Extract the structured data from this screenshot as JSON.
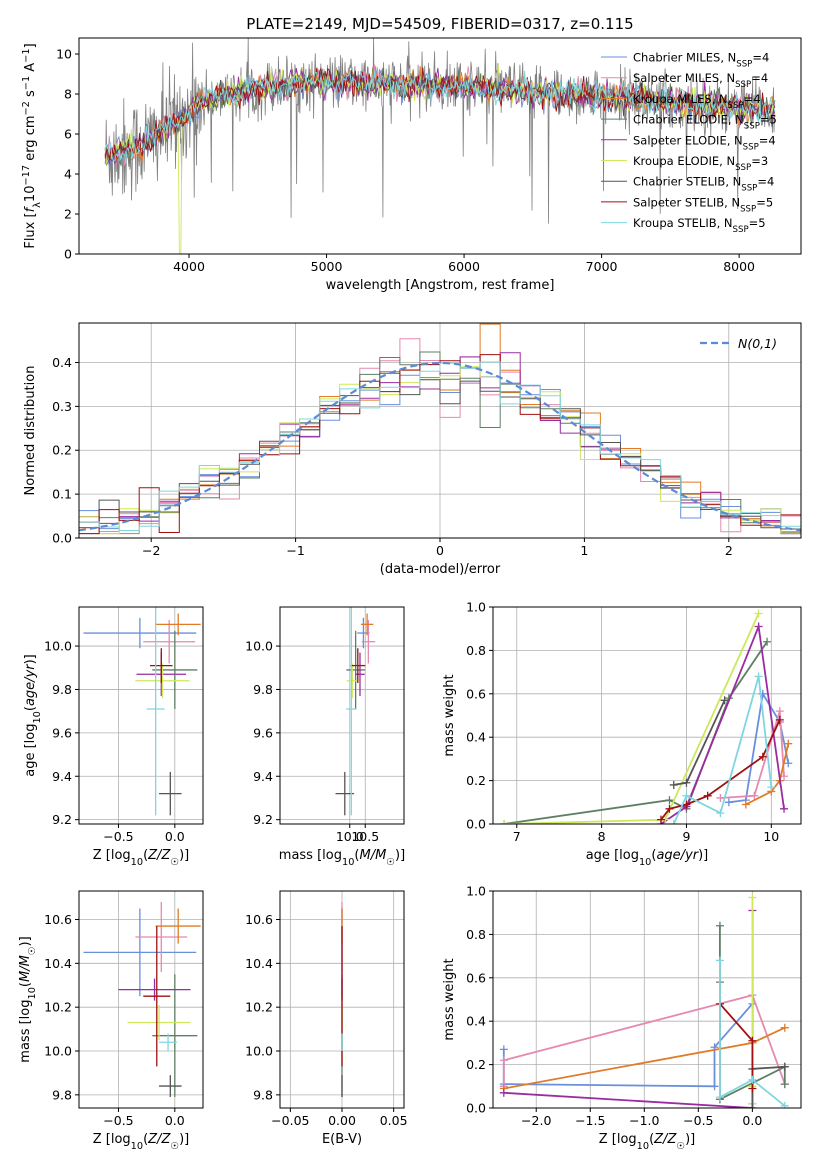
{
  "figure_title": "PLATE=2149, MJD=54509, FIBERID=0317, z=0.115",
  "models": [
    {
      "name": "Chabrier MILES",
      "n": "4",
      "color": "#6a8fdc"
    },
    {
      "name": "Salpeter MILES",
      "n": "4",
      "color": "#e589b0"
    },
    {
      "name": "Kroupa MILES",
      "n": "4",
      "color": "#e07b27"
    },
    {
      "name": "Chabrier ELODIE",
      "n": "5",
      "color": "#5f7f64"
    },
    {
      "name": "Salpeter ELODIE",
      "n": "4",
      "color": "#9a2ca0"
    },
    {
      "name": "Kroupa ELODIE",
      "n": "3",
      "color": "#cde85a"
    },
    {
      "name": "Chabrier STELIB",
      "n": "4",
      "color": "#555555"
    },
    {
      "name": "Salpeter STELIB",
      "n": "5",
      "color": "#a01010"
    },
    {
      "name": "Kroupa STELIB",
      "n": "5",
      "color": "#7fd6e0"
    }
  ],
  "chart_data": [
    {
      "id": "spectrum",
      "type": "line",
      "xlabel": "wavelength [Angstrom, rest frame]",
      "ylabel": "Flux [f_λ 10^-17 erg cm^-2 s^-1 A^-1]",
      "xlim": [
        3200,
        8450
      ],
      "ylim": [
        0,
        10.8
      ],
      "xticks": [
        4000,
        5000,
        6000,
        7000,
        8000
      ],
      "yticks": [
        0,
        2,
        4,
        6,
        8,
        10
      ],
      "grid": false,
      "legend": "top-right",
      "data_color": "#808080",
      "continuum": {
        "x": [
          3400,
          3600,
          3700,
          3800,
          3900,
          4000,
          4100,
          4300,
          4500,
          4800,
          5000,
          5500,
          6000,
          6500,
          7000,
          7200,
          7500,
          8000,
          8250
        ],
        "y": [
          4.9,
          5.3,
          5.6,
          6.1,
          6.5,
          7.1,
          7.7,
          8.0,
          8.3,
          8.6,
          8.6,
          8.5,
          8.4,
          8.1,
          7.9,
          7.8,
          7.6,
          7.3,
          7.2
        ]
      },
      "range": [
        3390,
        8260
      ]
    },
    {
      "id": "residuals",
      "type": "histogram",
      "xlabel": "(data-model)/error",
      "ylabel": "Normed distribution",
      "xlim": [
        -2.5,
        2.5
      ],
      "ylim": [
        0,
        0.49
      ],
      "xticks": [
        -2,
        -1,
        0,
        1,
        2
      ],
      "yticks": [
        0.0,
        0.1,
        0.2,
        0.3,
        0.4
      ],
      "grid": true,
      "legend": "top-right",
      "reference_label": "N(0,1)",
      "reference_color": "#5b8bd6",
      "bins": 36
    },
    {
      "id": "age-vs-z",
      "type": "scatter",
      "xlabel": "Z [log10(Z/Z☉)]",
      "ylabel": "age  [log10(age/yr)]",
      "xlim": [
        -0.85,
        0.25
      ],
      "ylim": [
        9.18,
        10.18
      ],
      "xticks": [
        -0.5,
        0.0
      ],
      "yticks": [
        9.2,
        9.4,
        9.6,
        9.8,
        10.0
      ],
      "grid": true,
      "points": [
        {
          "x": -0.31,
          "y": 10.06,
          "xerr": 0.5,
          "yerr": 0.07,
          "model": 0
        },
        {
          "x": -0.05,
          "y": 10.02,
          "xerr": 0.23,
          "yerr": 0.1,
          "model": 1
        },
        {
          "x": 0.03,
          "y": 10.1,
          "xerr": 0.2,
          "yerr": 0.05,
          "model": 2
        },
        {
          "x": 0.0,
          "y": 9.89,
          "xerr": 0.2,
          "yerr": 0.18,
          "model": 3
        },
        {
          "x": -0.12,
          "y": 9.87,
          "xerr": 0.22,
          "yerr": 0.1,
          "model": 4
        },
        {
          "x": -0.11,
          "y": 9.84,
          "xerr": 0.24,
          "yerr": 0.08,
          "model": 5
        },
        {
          "x": -0.04,
          "y": 9.32,
          "xerr": 0.1,
          "yerr": 0.1,
          "model": 6
        },
        {
          "x": -0.12,
          "y": 9.91,
          "xerr": 0.1,
          "yerr": 0.08,
          "model": 7
        },
        {
          "x": -0.17,
          "y": 9.71,
          "xerr": 0.08,
          "yerr": 0.49,
          "model": 8
        }
      ]
    },
    {
      "id": "age-vs-mass",
      "type": "scatter",
      "xlabel": "mass [log10(M/M☉)]",
      "ylabel": "",
      "xlim": [
        7.75,
        11.75
      ],
      "ylim": [
        9.18,
        10.18
      ],
      "xticks": [
        10.0,
        10.5
      ],
      "yticks": [
        9.2,
        9.4,
        9.6,
        9.8,
        10.0
      ],
      "grid": true,
      "points": [
        {
          "x": 10.44,
          "y": 10.06,
          "xerr": 0.2,
          "yerr": 0.07,
          "model": 0
        },
        {
          "x": 10.6,
          "y": 10.02,
          "xerr": 0.22,
          "yerr": 0.1,
          "model": 1
        },
        {
          "x": 10.56,
          "y": 10.1,
          "xerr": 0.2,
          "yerr": 0.05,
          "model": 2
        },
        {
          "x": 10.19,
          "y": 9.89,
          "xerr": 0.3,
          "yerr": 0.18,
          "model": 3
        },
        {
          "x": 10.33,
          "y": 9.87,
          "xerr": 0.15,
          "yerr": 0.1,
          "model": 4
        },
        {
          "x": 10.08,
          "y": 9.84,
          "xerr": 0.18,
          "yerr": 0.08,
          "model": 5
        },
        {
          "x": 9.84,
          "y": 9.32,
          "xerr": 0.3,
          "yerr": 0.1,
          "model": 6
        },
        {
          "x": 10.26,
          "y": 9.91,
          "xerr": 0.24,
          "yerr": 0.08,
          "model": 7
        },
        {
          "x": 10.05,
          "y": 9.71,
          "xerr": 0.16,
          "yerr": 0.49,
          "model": 8
        }
      ]
    },
    {
      "id": "weight-vs-age",
      "type": "line",
      "xlabel": "age  [log10(age/yr)]",
      "ylabel": "mass weight",
      "xlim": [
        6.72,
        10.35
      ],
      "ylim": [
        0,
        1.0
      ],
      "xticks": [
        7,
        8,
        9,
        10
      ],
      "yticks": [
        0.0,
        0.2,
        0.4,
        0.6,
        0.8,
        1.0
      ],
      "grid": true,
      "series": [
        {
          "model": 0,
          "x": [
            9.5,
            9.7,
            9.9,
            10.1,
            10.2
          ],
          "y": [
            0.1,
            0.11,
            0.6,
            0.47,
            0.28
          ]
        },
        {
          "model": 1,
          "x": [
            9.4,
            9.8,
            10.1,
            10.15
          ],
          "y": [
            0.12,
            0.13,
            0.52,
            0.22
          ]
        },
        {
          "model": 2,
          "x": [
            9.7,
            10.0,
            10.1,
            10.2
          ],
          "y": [
            0.09,
            0.15,
            0.2,
            0.37
          ]
        },
        {
          "model": 3,
          "x": [
            6.85,
            8.8,
            9.0,
            9.5,
            9.95
          ],
          "y": [
            0.0,
            0.11,
            0.07,
            0.58,
            0.84
          ]
        },
        {
          "model": 4,
          "x": [
            8.7,
            9.0,
            9.85,
            10.15
          ],
          "y": [
            0.0,
            0.08,
            0.91,
            0.07
          ]
        },
        {
          "model": 5,
          "x": [
            6.85,
            8.75,
            9.85
          ],
          "y": [
            0.0,
            0.02,
            0.97
          ]
        },
        {
          "model": 6,
          "x": [
            8.85,
            9.0,
            9.45
          ],
          "y": [
            0.18,
            0.19,
            0.57
          ]
        },
        {
          "model": 7,
          "x": [
            8.7,
            8.8,
            9.0,
            9.25,
            9.9,
            10.1
          ],
          "y": [
            0.02,
            0.07,
            0.09,
            0.13,
            0.31,
            0.48
          ]
        },
        {
          "model": 8,
          "x": [
            8.85,
            9.0,
            9.4,
            9.85,
            10.0
          ],
          "y": [
            0.0,
            0.13,
            0.05,
            0.68,
            0.17
          ]
        }
      ]
    },
    {
      "id": "mass-vs-z",
      "type": "scatter",
      "xlabel": "Z [log10(Z/Z☉)]",
      "ylabel": "mass [log10(M/M☉)]",
      "xlim": [
        -0.85,
        0.25
      ],
      "ylim": [
        9.74,
        10.73
      ],
      "xticks": [
        -0.5,
        0.0
      ],
      "yticks": [
        9.8,
        10.0,
        10.2,
        10.4,
        10.6
      ],
      "grid": true,
      "points": [
        {
          "x": -0.31,
          "y": 10.45,
          "xerr": 0.5,
          "yerr": 0.2,
          "model": 0
        },
        {
          "x": -0.12,
          "y": 10.52,
          "xerr": 0.23,
          "yerr": 0.16,
          "model": 1
        },
        {
          "x": 0.03,
          "y": 10.57,
          "xerr": 0.2,
          "yerr": 0.08,
          "model": 2
        },
        {
          "x": 0.0,
          "y": 10.07,
          "xerr": 0.2,
          "yerr": 0.28,
          "model": 3
        },
        {
          "x": -0.18,
          "y": 10.28,
          "xerr": 0.32,
          "yerr": 0.05,
          "model": 4
        },
        {
          "x": -0.14,
          "y": 10.13,
          "xerr": 0.28,
          "yerr": 0.08,
          "model": 5
        },
        {
          "x": -0.04,
          "y": 9.84,
          "xerr": 0.1,
          "yerr": 0.05,
          "model": 6
        },
        {
          "x": -0.16,
          "y": 10.25,
          "xerr": 0.12,
          "yerr": 0.32,
          "model": 7
        },
        {
          "x": -0.06,
          "y": 10.04,
          "xerr": 0.08,
          "yerr": 0.04,
          "model": 8
        }
      ]
    },
    {
      "id": "mass-vs-ebv",
      "type": "scatter",
      "xlabel": "E(B-V)",
      "ylabel": "",
      "xlim": [
        -0.06,
        0.06
      ],
      "ylim": [
        9.74,
        10.73
      ],
      "xticks": [
        -0.05,
        0.0,
        0.05
      ],
      "yticks": [
        9.8,
        10.0,
        10.2,
        10.4,
        10.6
      ],
      "grid": true,
      "points": [
        {
          "x": 0.0,
          "y": 10.45,
          "xerr": 0,
          "yerr": 0.2,
          "model": 0
        },
        {
          "x": 0.0,
          "y": 10.52,
          "xerr": 0,
          "yerr": 0.16,
          "model": 1
        },
        {
          "x": 0.0,
          "y": 10.57,
          "xerr": 0,
          "yerr": 0.08,
          "model": 2
        },
        {
          "x": 0.0,
          "y": 10.07,
          "xerr": 0,
          "yerr": 0.28,
          "model": 3
        },
        {
          "x": 0.0,
          "y": 10.28,
          "xerr": 0,
          "yerr": 0.05,
          "model": 4
        },
        {
          "x": 0.0,
          "y": 10.13,
          "xerr": 0,
          "yerr": 0.08,
          "model": 5
        },
        {
          "x": 0.0,
          "y": 9.84,
          "xerr": 0,
          "yerr": 0.05,
          "model": 6
        },
        {
          "x": 0.0,
          "y": 10.25,
          "xerr": 0,
          "yerr": 0.32,
          "model": 7
        },
        {
          "x": 0.0,
          "y": 10.04,
          "xerr": 0,
          "yerr": 0.04,
          "model": 8
        }
      ]
    },
    {
      "id": "weight-vs-z",
      "type": "line",
      "xlabel": "Z [log10(Z/Z☉)]",
      "ylabel": "mass weight",
      "xlim": [
        -2.4,
        0.45
      ],
      "ylim": [
        0,
        1.0
      ],
      "xticks": [
        -2.0,
        -1.5,
        -1.0,
        -0.5,
        0.0
      ],
      "yticks": [
        0.0,
        0.2,
        0.4,
        0.6,
        0.8,
        1.0
      ],
      "grid": true,
      "series": [
        {
          "model": 0,
          "x": [
            -2.3,
            -2.3,
            -0.35,
            -0.35,
            0.0,
            0.0
          ],
          "y": [
            0.27,
            0.11,
            0.1,
            0.28,
            0.48,
            0.02
          ]
        },
        {
          "model": 1,
          "x": [
            -2.3,
            -2.3,
            0.0,
            0.3
          ],
          "y": [
            0.1,
            0.22,
            0.52,
            0.11
          ]
        },
        {
          "model": 2,
          "x": [
            -2.3,
            0.0,
            0.3
          ],
          "y": [
            0.09,
            0.3,
            0.37
          ]
        },
        {
          "model": 3,
          "x": [
            -0.3,
            -0.3,
            -0.3,
            0.3,
            0.3
          ],
          "y": [
            0.84,
            0.58,
            0.04,
            0.19,
            0.11
          ]
        },
        {
          "model": 4,
          "x": [
            -2.3,
            0.0,
            0.0
          ],
          "y": [
            0.07,
            0.0,
            0.91
          ]
        },
        {
          "model": 5,
          "x": [
            0.0,
            0.0,
            0.0
          ],
          "y": [
            0.02,
            0.1,
            0.97
          ]
        },
        {
          "model": 6,
          "x": [
            0.0,
            0.0,
            0.3
          ],
          "y": [
            0.0,
            0.18,
            0.19
          ]
        },
        {
          "model": 7,
          "x": [
            -0.3,
            0.0,
            0.0
          ],
          "y": [
            0.48,
            0.31,
            0.09
          ]
        },
        {
          "model": 8,
          "x": [
            -0.3,
            -0.3,
            0.0,
            0.3
          ],
          "y": [
            0.68,
            0.05,
            0.13,
            0.01
          ]
        }
      ]
    }
  ]
}
